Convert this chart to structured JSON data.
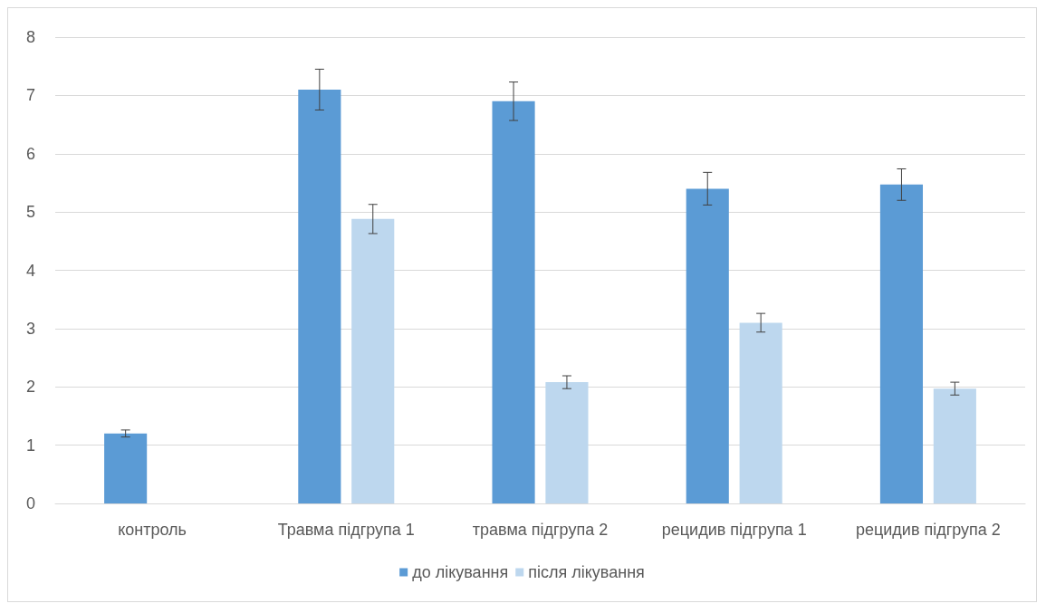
{
  "chart_data": {
    "type": "bar",
    "categories": [
      "контроль",
      "Травма підгрупа 1",
      "травма підгрупа 2",
      "рецидив підгрупа 1",
      "рецидив підгрупа 2"
    ],
    "series": [
      {
        "name": "до лікування",
        "color": "#5b9bd5",
        "values": [
          1.2,
          7.1,
          6.9,
          5.4,
          5.47
        ],
        "errors": [
          0.06,
          0.35,
          0.33,
          0.28,
          0.27
        ]
      },
      {
        "name": "після лікування",
        "color": "#bdd7ee",
        "values": [
          null,
          4.88,
          2.08,
          3.1,
          1.97
        ],
        "errors": [
          null,
          0.25,
          0.11,
          0.16,
          0.11
        ]
      }
    ],
    "ylim": [
      0,
      8
    ],
    "yticks": [
      0,
      1,
      2,
      3,
      4,
      5,
      6,
      7,
      8
    ],
    "grid": "y",
    "legend": "bottom"
  }
}
